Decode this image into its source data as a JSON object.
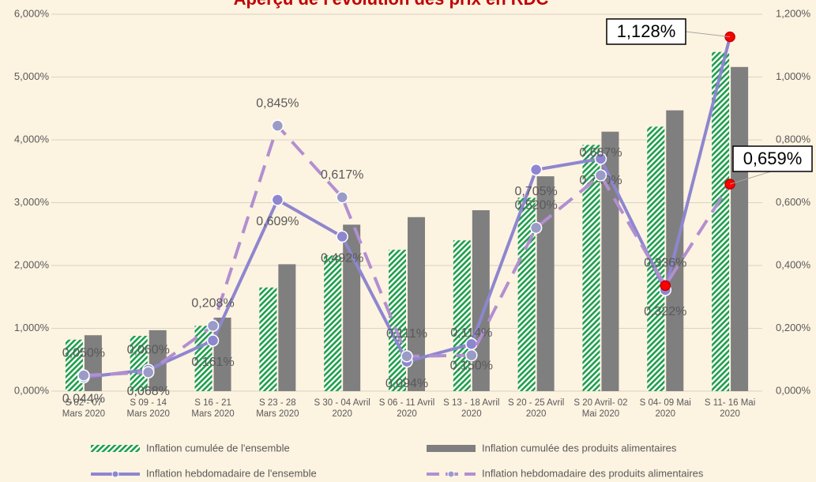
{
  "chart_data": {
    "type": "combo",
    "title": "Aperçu de l'évolution des prix en RDC",
    "categories": [
      [
        "S 02 - 07",
        "Mars 2020"
      ],
      [
        "S 09 - 14",
        "Mars 2020"
      ],
      [
        "S 16 - 21",
        "Mars 2020"
      ],
      [
        "S 23 - 28",
        "Mars 2020"
      ],
      [
        "S 30 - 04 Avril",
        "2020"
      ],
      [
        "S 06 - 11 Avril",
        "2020"
      ],
      [
        "S 13 - 18 Avril",
        "2020"
      ],
      [
        "S 20 - 25 Avril",
        "2020"
      ],
      [
        "S 20 Avril- 02",
        "Mai 2020"
      ],
      [
        "S 04- 09 Mai",
        "2020"
      ],
      [
        "S 11- 16 Mai",
        "2020"
      ]
    ],
    "ylim": [
      0,
      6
    ],
    "yticks": [
      {
        "value": 0,
        "label": "0,000%"
      },
      {
        "value": 1,
        "label": "1,000%"
      },
      {
        "value": 2,
        "label": "2,000%"
      },
      {
        "value": 3,
        "label": "3,000%"
      },
      {
        "value": 4,
        "label": "4,000%"
      },
      {
        "value": 5,
        "label": "5,000%"
      },
      {
        "value": 6,
        "label": "6,000%"
      }
    ],
    "y2lim": [
      0,
      1.2
    ],
    "y2ticks": [
      {
        "value": 0,
        "label": "0,000%"
      },
      {
        "value": 0.2,
        "label": "0,200%"
      },
      {
        "value": 0.4,
        "label": "0,400%"
      },
      {
        "value": 0.6,
        "label": "0,600%"
      },
      {
        "value": 0.8,
        "label": "0,800%"
      },
      {
        "value": 1.0,
        "label": "1,000%"
      },
      {
        "value": 1.2,
        "label": "1,200%"
      }
    ],
    "grid": true,
    "series": [
      {
        "name": "Inflation cumulée de l'ensemble",
        "type": "bar",
        "color": "#1e9e4a",
        "values": [
          0.82,
          0.88,
          1.04,
          1.65,
          2.16,
          2.25,
          2.4,
          3.08,
          3.92,
          4.21,
          5.4
        ]
      },
      {
        "name": "Inflation cumulée des produits alimentaires",
        "type": "bar",
        "color": "#7f7f7f",
        "values": [
          0.89,
          0.97,
          1.17,
          2.02,
          2.65,
          2.77,
          2.88,
          3.42,
          4.13,
          4.47,
          5.16
        ]
      },
      {
        "name": "Inflation hebdomadaire de l'ensemble",
        "type": "line",
        "axis": "y2",
        "color": "#8e86cf",
        "values": [
          0.044,
          0.068,
          0.161,
          0.609,
          0.492,
          0.094,
          0.15,
          0.705,
          0.74,
          0.322,
          1.128
        ],
        "value_labels": [
          "0,044%",
          "0,068%",
          "0,161%",
          "0,609%",
          "0,492%",
          "0,094%",
          "0,150%",
          "0,705%",
          "0,740%",
          "0,322%",
          "1,128%"
        ]
      },
      {
        "name": "Inflation hebdomadaire des produits alimentaires",
        "type": "dashed",
        "axis": "y2",
        "color": "#b28fd0",
        "values": [
          0.05,
          0.06,
          0.208,
          0.845,
          0.617,
          0.111,
          0.114,
          0.52,
          0.687,
          0.336,
          0.659
        ],
        "value_labels": [
          "0,050%",
          "0,060%",
          "0,208%",
          "0,845%",
          "0,617%",
          "0,111%",
          "0,114%",
          "0,520%",
          "0,687%",
          "0,336%",
          "0,659%"
        ]
      }
    ]
  }
}
